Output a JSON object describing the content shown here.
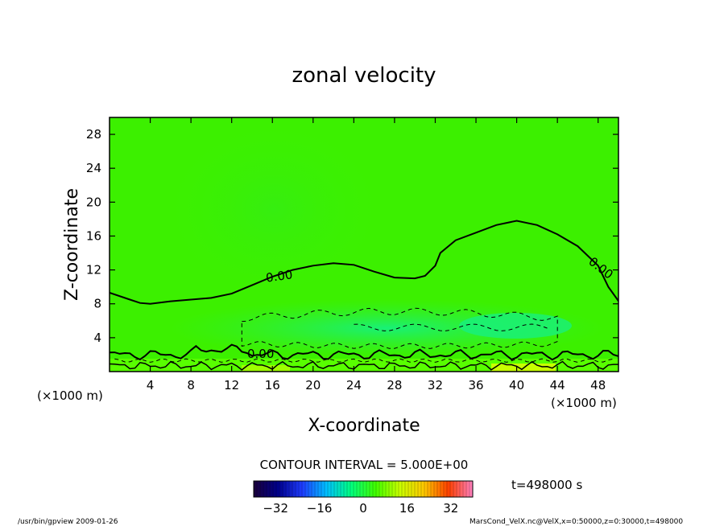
{
  "chart_data": {
    "type": "heatmap",
    "title": "zonal velocity",
    "xlabel": "X-coordinate",
    "ylabel": "Z-coordinate",
    "x_unit": "(×1000 m)",
    "y_unit": "(×1000 m)",
    "xlim": [
      0,
      50
    ],
    "ylim": [
      0,
      30
    ],
    "x_ticks": [
      "4",
      "8",
      "12",
      "16",
      "20",
      "24",
      "28",
      "32",
      "36",
      "40",
      "44",
      "48"
    ],
    "y_ticks": [
      "4",
      "8",
      "12",
      "16",
      "20",
      "24",
      "28"
    ],
    "contour_interval_text": "CONTOUR INTERVAL = 5.000E+00",
    "contour_label": "0.00",
    "time_text": "t=498000 s",
    "colorbar": {
      "range": [
        -40,
        40
      ],
      "tick_labels": [
        "-32",
        "-16",
        "0",
        "16",
        "32"
      ],
      "colors": [
        "#1a003a",
        "#00008b",
        "#1e3cff",
        "#00c0ff",
        "#00ff80",
        "#40ff00",
        "#c8ff00",
        "#ffc800",
        "#ff4000",
        "#ff80c0"
      ]
    },
    "zero_contour": {
      "x": [
        0,
        2,
        3,
        4,
        6,
        8,
        10,
        12,
        14,
        16,
        18,
        20,
        22,
        24,
        26,
        28,
        30,
        31,
        32,
        32.5,
        34,
        36,
        38,
        40,
        42,
        44,
        46,
        48,
        49
      ],
      "z": [
        9.3,
        8.5,
        8.1,
        8.0,
        8.3,
        8.5,
        8.7,
        9.2,
        10.2,
        11.2,
        12.0,
        12.5,
        12.8,
        12.6,
        11.8,
        11.1,
        11.0,
        11.3,
        12.5,
        14.0,
        15.5,
        16.4,
        17.3,
        17.8,
        17.3,
        16.2,
        14.8,
        12.5,
        10.0
      ]
    }
  },
  "footer": {
    "left": "/usr/bin/gpview   2009-01-26",
    "right": "MarsCond_VelX.nc@VelX,x=0:50000,z=0:30000,t=498000"
  },
  "colors": {
    "background_field": "#3cf000",
    "plume": "#38f018",
    "lowlevel_jet": "#20f060",
    "surface_positive": "#c8ff00"
  }
}
